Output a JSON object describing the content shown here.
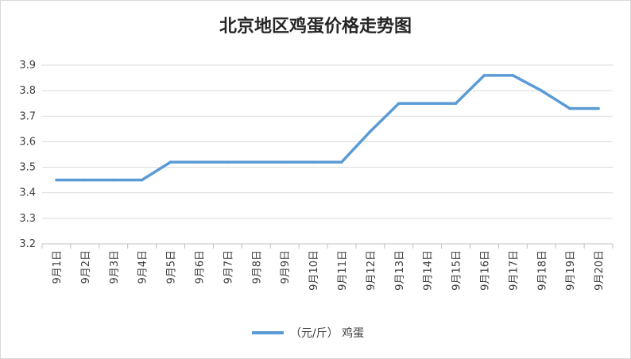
{
  "colors": {
    "series": "#5b9bd5",
    "grid": "#d9d9d9",
    "axis": "#bfbfbf",
    "text": "#404040"
  },
  "chart_data": {
    "type": "line",
    "title": "北京地区鸡蛋价格走势图",
    "categories": [
      "9月1日",
      "9月2日",
      "9月3日",
      "9月4日",
      "9月5日",
      "9月6日",
      "9月7日",
      "9月8日",
      "9月9日",
      "9月10日",
      "9月11日",
      "9月12日",
      "9月13日",
      "9月14日",
      "9月15日",
      "9月16日",
      "9月17日",
      "9月18日",
      "9月19日",
      "9月20日"
    ],
    "series": [
      {
        "name": "（元/斤） 鸡蛋",
        "values": [
          3.45,
          3.45,
          3.45,
          3.45,
          3.52,
          3.52,
          3.52,
          3.52,
          3.52,
          3.52,
          3.52,
          3.64,
          3.75,
          3.75,
          3.75,
          3.86,
          3.86,
          3.8,
          3.73,
          3.73
        ]
      }
    ],
    "ylim": [
      3.2,
      3.9
    ],
    "yticks": [
      "3.2",
      "3.3",
      "3.4",
      "3.5",
      "3.6",
      "3.7",
      "3.8",
      "3.9"
    ],
    "grid": true,
    "legend": "bottom"
  }
}
